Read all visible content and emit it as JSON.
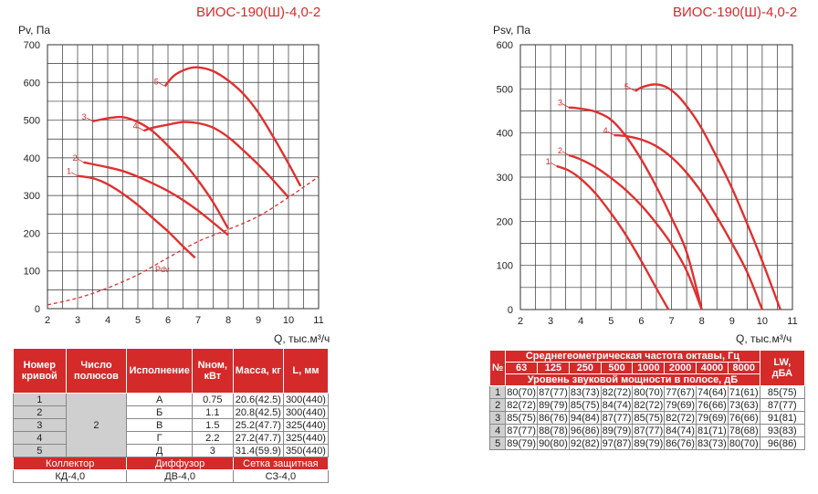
{
  "left": {
    "title": "ВИОС-190(Ш)-4,0-2",
    "ylabel": "Pv, Па",
    "xlabel": "Q, тыс.м³/ч",
    "pdv_label": "Pdv"
  },
  "right": {
    "title": "ВИОС-190(Ш)-4,0-2",
    "ylabel": "Psv, Па",
    "xlabel": "Q, тыс.м³/ч"
  },
  "chart_data": [
    {
      "type": "line",
      "title": "ВИОС-190(Ш)-4,0-2",
      "ylabel": "Pv, Па",
      "xlabel": "Q, тыс.м³/ч",
      "xlim": [
        2,
        11
      ],
      "ylim": [
        0,
        700
      ],
      "xticks": [
        2,
        3,
        4,
        5,
        6,
        7,
        8,
        9,
        10,
        11
      ],
      "yticks": [
        0,
        100,
        200,
        300,
        400,
        500,
        600,
        700
      ],
      "grid": true,
      "series": [
        {
          "name": "1",
          "x": [
            3.0,
            3.5,
            4.0,
            4.5,
            5.0,
            5.5,
            6.0,
            6.5,
            6.9
          ],
          "y": [
            352,
            346,
            330,
            305,
            275,
            240,
            205,
            165,
            135
          ]
        },
        {
          "name": "2",
          "x": [
            3.2,
            4.0,
            4.5,
            5.0,
            5.5,
            6.0,
            6.5,
            7.0,
            7.5,
            8.0
          ],
          "y": [
            388,
            375,
            365,
            350,
            332,
            312,
            288,
            260,
            228,
            195
          ]
        },
        {
          "name": "3",
          "x": [
            3.5,
            4.0,
            4.5,
            5.0,
            5.5,
            6.0,
            6.5,
            7.0,
            7.5,
            8.0
          ],
          "y": [
            497,
            505,
            508,
            495,
            470,
            432,
            390,
            340,
            282,
            212
          ]
        },
        {
          "name": "4",
          "x": [
            5.2,
            5.5,
            6.0,
            6.5,
            7.0,
            7.5,
            8.0,
            8.5,
            9.0,
            9.5,
            10.0
          ],
          "y": [
            472,
            480,
            488,
            495,
            492,
            480,
            455,
            420,
            382,
            340,
            295
          ]
        },
        {
          "name": "5",
          "x": [
            5.9,
            6.2,
            6.6,
            7.0,
            7.5,
            8.0,
            8.5,
            9.0,
            9.5,
            10.0,
            10.4
          ],
          "y": [
            590,
            618,
            635,
            640,
            630,
            605,
            570,
            520,
            455,
            385,
            325
          ]
        },
        {
          "name": "Pdv",
          "style": "dashed",
          "x": [
            2.0,
            3.0,
            4.0,
            5.0,
            6.0,
            7.0,
            8.0,
            9.0,
            10.0,
            11.0
          ],
          "y": [
            10,
            28,
            55,
            90,
            135,
            178,
            210,
            245,
            295,
            350
          ]
        }
      ]
    },
    {
      "type": "line",
      "title": "ВИОС-190(Ш)-4,0-2",
      "ylabel": "Psv, Па",
      "xlabel": "Q, тыс.м³/ч",
      "xlim": [
        2,
        11
      ],
      "ylim": [
        0,
        600
      ],
      "xticks": [
        2,
        3,
        4,
        5,
        6,
        7,
        8,
        9,
        10,
        11
      ],
      "yticks": [
        0,
        100,
        200,
        300,
        400,
        500,
        600
      ],
      "grid": true,
      "series": [
        {
          "name": "1",
          "x": [
            3.2,
            3.6,
            4.0,
            4.5,
            5.0,
            5.5,
            6.0,
            6.5,
            6.9
          ],
          "y": [
            325,
            315,
            296,
            262,
            218,
            168,
            110,
            48,
            0
          ]
        },
        {
          "name": "2",
          "x": [
            3.6,
            4.0,
            4.5,
            5.0,
            5.5,
            6.0,
            6.5,
            7.0,
            7.5,
            8.0
          ],
          "y": [
            350,
            340,
            322,
            298,
            270,
            236,
            195,
            148,
            88,
            0
          ]
        },
        {
          "name": "3",
          "x": [
            3.6,
            4.0,
            4.5,
            5.0,
            5.5,
            6.0,
            6.5,
            7.0,
            7.5,
            8.0
          ],
          "y": [
            458,
            455,
            448,
            430,
            392,
            340,
            278,
            208,
            130,
            0
          ]
        },
        {
          "name": "4",
          "x": [
            5.1,
            5.5,
            6.0,
            6.5,
            7.0,
            7.5,
            8.0,
            8.5,
            9.0,
            9.5,
            10.0
          ],
          "y": [
            395,
            393,
            385,
            370,
            345,
            310,
            265,
            210,
            150,
            85,
            0
          ]
        },
        {
          "name": "5",
          "x": [
            5.8,
            6.0,
            6.4,
            6.8,
            7.2,
            7.6,
            8.0,
            8.5,
            9.0,
            9.5,
            10.0,
            10.6
          ],
          "y": [
            495,
            503,
            510,
            505,
            485,
            452,
            410,
            345,
            275,
            195,
            110,
            0
          ]
        }
      ]
    }
  ],
  "spec_table": {
    "headers": [
      "Номер кривой",
      "Число полюсов",
      "Исполнение",
      "Nном, кВт",
      "Масса, кг",
      "L, мм"
    ],
    "rows": [
      {
        "num": "1",
        "type": "А",
        "power": "0.75",
        "mass": "20.6(42.5)",
        "length": "300(440)"
      },
      {
        "num": "2",
        "type": "Б",
        "power": "1.1",
        "mass": "20.8(42.5)",
        "length": "300(440)"
      },
      {
        "num": "3",
        "type": "В",
        "power": "1.5",
        "mass": "25.2(47.7)",
        "length": "325(440)"
      },
      {
        "num": "4",
        "type": "Г",
        "power": "2.2",
        "mass": "27.2(47.7)",
        "length": "325(440)"
      },
      {
        "num": "5",
        "type": "Д",
        "power": "3",
        "mass": "31.4(59.9)",
        "length": "350(440)"
      }
    ],
    "poles": "2",
    "footer_headers": [
      "Коллектор",
      "Диффузор",
      "Сетка защитная"
    ],
    "footer_values": [
      "КД-4,0",
      "ДВ-4,0",
      "СЗ-4,0"
    ]
  },
  "noise_table": {
    "num_header": "№",
    "group_header": "Среднегеометрическая частота октавы, Гц",
    "frequencies": [
      "63",
      "125",
      "250",
      "500",
      "1000",
      "2000",
      "4000",
      "8000"
    ],
    "sub_header": "Уровень звуковой мощности в полосе, дБ",
    "lw_header": "LW, дБА",
    "rows": [
      {
        "num": "1",
        "values": [
          "80(70)",
          "87(77)",
          "83(73)",
          "82(72)",
          "80(70)",
          "77(67)",
          "74(64)",
          "71(61)"
        ],
        "lw": "85(75)"
      },
      {
        "num": "2",
        "values": [
          "82(72)",
          "89(79)",
          "85(75)",
          "84(74)",
          "82(72)",
          "79(69)",
          "76(66)",
          "73(63)"
        ],
        "lw": "87(77)"
      },
      {
        "num": "3",
        "values": [
          "85(75)",
          "86(76)",
          "94(84)",
          "87(77)",
          "85(75)",
          "82(72)",
          "79(69)",
          "76(66)"
        ],
        "lw": "91(81)"
      },
      {
        "num": "4",
        "values": [
          "87(77)",
          "88(78)",
          "96(86)",
          "89(79)",
          "87(77)",
          "84(74)",
          "81(71)",
          "78(68)"
        ],
        "lw": "93(83)"
      },
      {
        "num": "5",
        "values": [
          "89(79)",
          "90(80)",
          "92(82)",
          "97(87)",
          "89(79)",
          "86(76)",
          "83(73)",
          "80(70)"
        ],
        "lw": "96(86)"
      }
    ]
  },
  "colors": {
    "accent": "#d42a2a",
    "curve": "#e03030",
    "grid": "#333333",
    "table_gray": "#cfcfcf"
  }
}
